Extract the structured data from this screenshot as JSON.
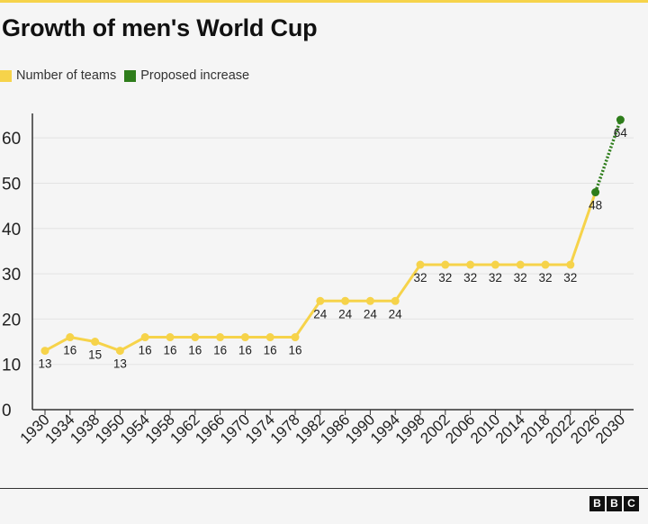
{
  "title": "Growth of men's World Cup",
  "legend": {
    "items": [
      {
        "label": "Number of teams",
        "color": "#f6d34a"
      },
      {
        "label": "Proposed increase",
        "color": "#2e7d1b"
      }
    ]
  },
  "logo": [
    "B",
    "B",
    "C"
  ],
  "chart_data": {
    "type": "line",
    "title": "Growth of men's World Cup",
    "xlabel": "",
    "ylabel": "",
    "ylim": [
      0,
      65
    ],
    "yticks": [
      0,
      10,
      20,
      30,
      40,
      50,
      60
    ],
    "grid": true,
    "legend_position": "top-left",
    "categories": [
      "1930",
      "1934",
      "1938",
      "1950",
      "1954",
      "1958",
      "1962",
      "1966",
      "1970",
      "1974",
      "1978",
      "1982",
      "1986",
      "1990",
      "1994",
      "1998",
      "2002",
      "2006",
      "2010",
      "2014",
      "2018",
      "2022",
      "2026",
      "2030"
    ],
    "series": [
      {
        "name": "Number of teams",
        "color": "#f6d34a",
        "values": [
          13,
          16,
          15,
          13,
          16,
          16,
          16,
          16,
          16,
          16,
          16,
          24,
          24,
          24,
          24,
          32,
          32,
          32,
          32,
          32,
          32,
          32,
          48,
          null
        ]
      },
      {
        "name": "Proposed increase",
        "color": "#2e7d1b",
        "style": "dotted",
        "values": [
          null,
          null,
          null,
          null,
          null,
          null,
          null,
          null,
          null,
          null,
          null,
          null,
          null,
          null,
          null,
          null,
          null,
          null,
          null,
          null,
          null,
          null,
          48,
          64
        ]
      }
    ],
    "data_labels": [
      "13",
      "16",
      "15",
      "13",
      "16",
      "16",
      "16",
      "16",
      "16",
      "16",
      "16",
      "24",
      "24",
      "24",
      "24",
      "32",
      "32",
      "32",
      "32",
      "32",
      "32",
      "32",
      "48",
      "64"
    ]
  }
}
